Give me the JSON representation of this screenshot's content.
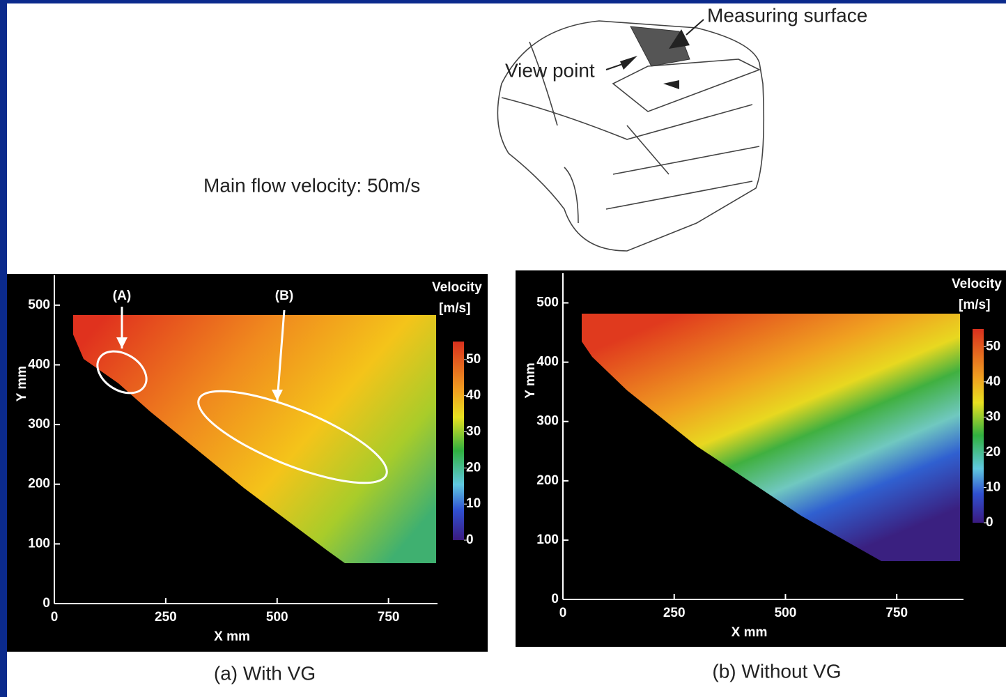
{
  "figure": {
    "measuring_surface": "Measuring surface",
    "view_point": "View point",
    "flow_note": "Main flow velocity: 50m/s"
  },
  "chart_data": [
    {
      "type": "heatmap",
      "caption": "(a) With VG",
      "x_label": "X mm",
      "y_label": "Y mm",
      "xlim": [
        0,
        860
      ],
      "ylim": [
        0,
        550
      ],
      "xticks": [
        0,
        250,
        500,
        750
      ],
      "yticks": [
        0,
        100,
        200,
        300,
        400,
        500
      ],
      "colorbar_title": "Velocity",
      "colorbar_unit": "[m/s]",
      "clim": [
        0,
        55
      ],
      "cticks": [
        0,
        10,
        20,
        30,
        40,
        50
      ],
      "annotations": [
        "(A)",
        "(B)"
      ]
    },
    {
      "type": "heatmap",
      "caption": "(b) Without VG",
      "x_label": "X mm",
      "y_label": "Y mm",
      "xlim": [
        0,
        900
      ],
      "ylim": [
        0,
        550
      ],
      "xticks": [
        0,
        250,
        500,
        750
      ],
      "yticks": [
        0,
        100,
        200,
        300,
        400,
        500
      ],
      "colorbar_title": "Velocity",
      "colorbar_unit": "[m/s]",
      "clim": [
        0,
        55
      ],
      "cticks": [
        0,
        10,
        20,
        30,
        40,
        50
      ]
    }
  ]
}
